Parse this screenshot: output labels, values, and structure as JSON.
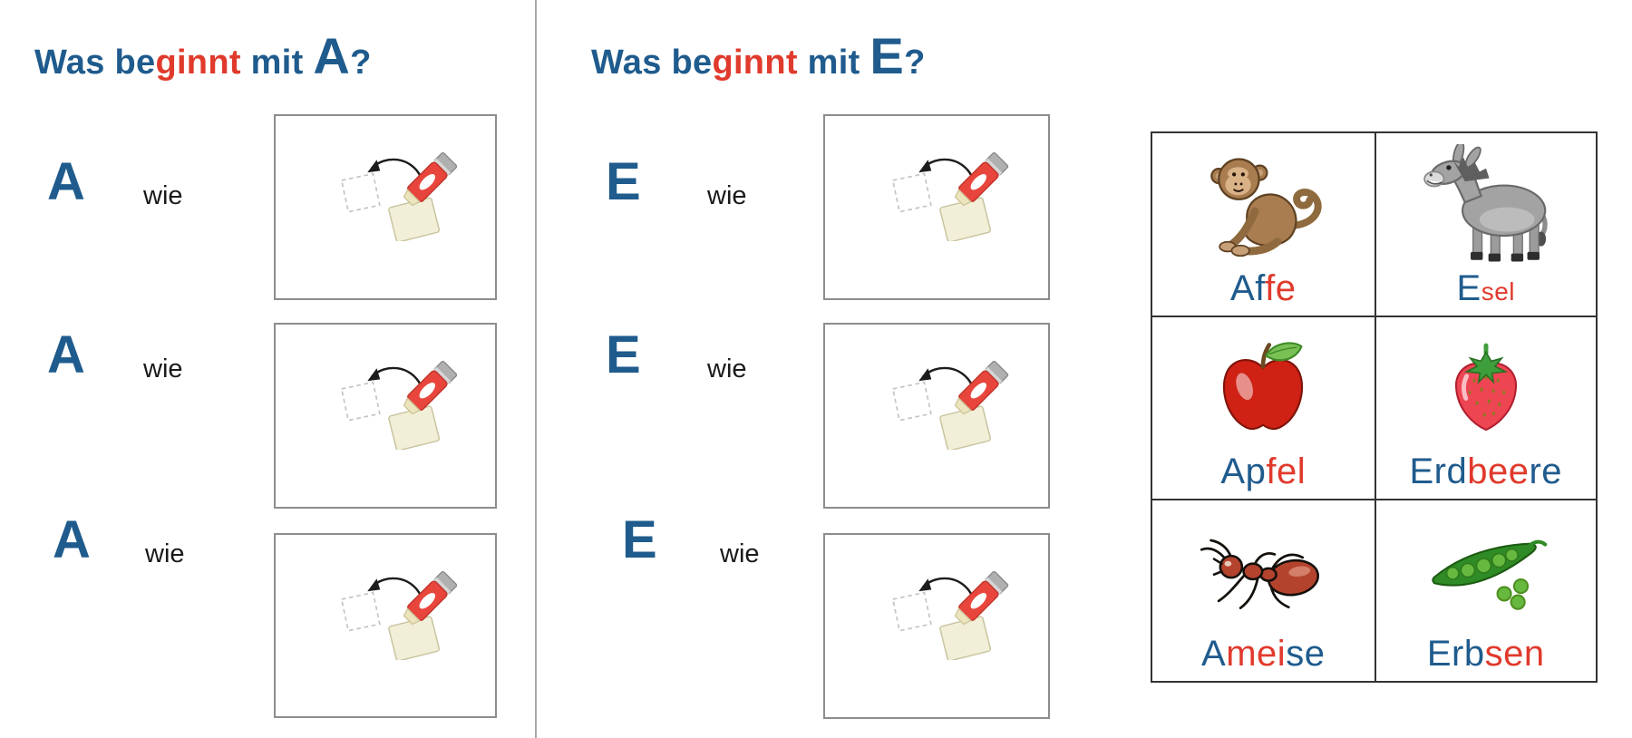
{
  "colors": {
    "blue": "#1f5b8d",
    "red": "#e03a2c",
    "text": "#1a1a1a",
    "divider": "#a8a8a8",
    "box_border": "#8d8d8d",
    "grid_border": "#333333"
  },
  "section_a": {
    "title_segments": [
      {
        "text": "Was be",
        "color": "blue"
      },
      {
        "text": "ginnt",
        "color": "red"
      },
      {
        "text": " mit ",
        "color": "blue"
      },
      {
        "text": "A",
        "color": "blue",
        "large": true
      },
      {
        "text": "?",
        "color": "blue"
      }
    ],
    "rows": [
      {
        "letter": "A",
        "connector": "wie"
      },
      {
        "letter": "A",
        "connector": "wie"
      },
      {
        "letter": "A",
        "connector": "wie"
      }
    ]
  },
  "section_e": {
    "title_segments": [
      {
        "text": "Was be",
        "color": "blue"
      },
      {
        "text": "ginnt",
        "color": "red"
      },
      {
        "text": " mit ",
        "color": "blue"
      },
      {
        "text": "E",
        "color": "blue",
        "large": true
      },
      {
        "text": "?",
        "color": "blue"
      }
    ],
    "rows": [
      {
        "letter": "E",
        "connector": "wie"
      },
      {
        "letter": "E",
        "connector": "wie"
      },
      {
        "letter": "E",
        "connector": "wie"
      }
    ]
  },
  "paste_box": {
    "icon": "glue-stick-paste-icon"
  },
  "cards": [
    {
      "image": "monkey-clipart",
      "label_segments": [
        {
          "text": "Af",
          "color": "blue"
        },
        {
          "text": "fe",
          "color": "red"
        }
      ]
    },
    {
      "image": "donkey-clipart",
      "label_segments": [
        {
          "text": "E",
          "color": "blue"
        },
        {
          "text": "sel",
          "color": "red",
          "small": true
        }
      ]
    },
    {
      "image": "apple-clipart",
      "label_segments": [
        {
          "text": "Ap",
          "color": "blue"
        },
        {
          "text": "fel",
          "color": "red"
        }
      ]
    },
    {
      "image": "strawberry-clipart",
      "label_segments": [
        {
          "text": "Erd",
          "color": "blue"
        },
        {
          "text": "bee",
          "color": "red"
        },
        {
          "text": "re",
          "color": "blue"
        }
      ]
    },
    {
      "image": "ant-clipart",
      "label_segments": [
        {
          "text": "A",
          "color": "blue"
        },
        {
          "text": "mei",
          "color": "red"
        },
        {
          "text": "se",
          "color": "blue"
        }
      ]
    },
    {
      "image": "peas-clipart",
      "label_segments": [
        {
          "text": "Erb",
          "color": "blue"
        },
        {
          "text": "sen",
          "color": "red"
        }
      ]
    }
  ]
}
